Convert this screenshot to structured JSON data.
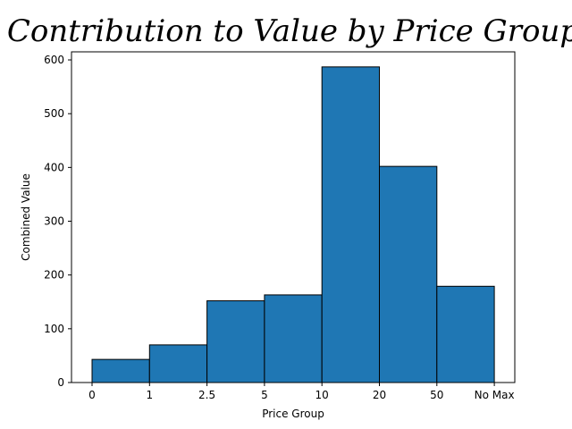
{
  "chart_data": {
    "type": "bar",
    "title": "Contribution to Value by Price Group",
    "xlabel": "Price Group",
    "ylabel": "Combined Value",
    "bin_edges": [
      "0",
      "1",
      "2.5",
      "5",
      "10",
      "20",
      "50",
      "No Max"
    ],
    "values": [
      43,
      70,
      152,
      163,
      587,
      402,
      179
    ],
    "ylim": [
      0,
      615
    ],
    "yticks": [
      0,
      100,
      200,
      300,
      400,
      500,
      600
    ],
    "grid": false,
    "legend": "none",
    "colors": {
      "bar_fill": "#1f77b4",
      "bar_edge": "#000000",
      "axis": "#000000",
      "background": "#ffffff"
    }
  }
}
